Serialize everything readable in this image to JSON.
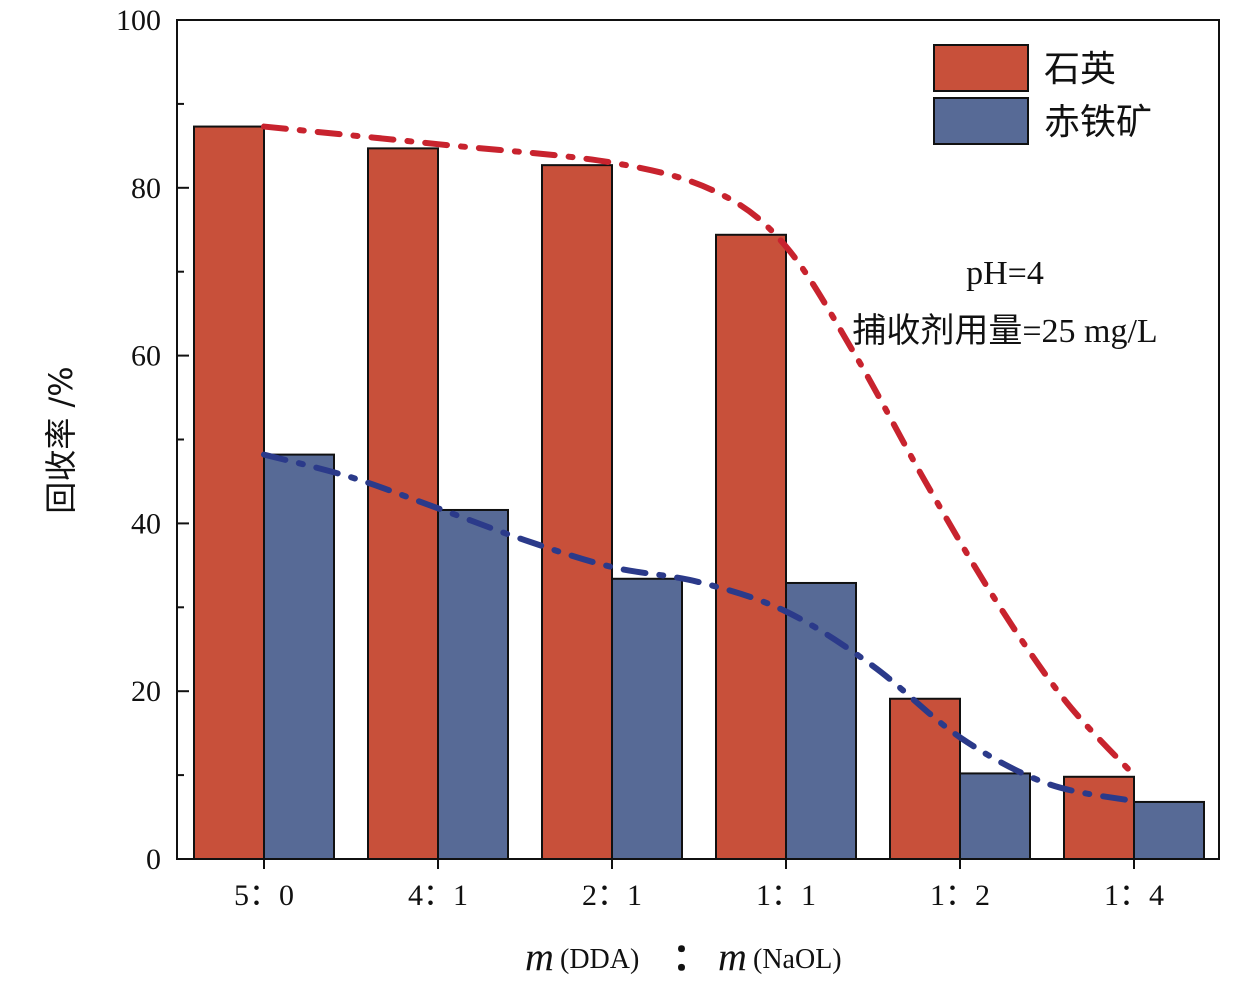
{
  "chart_data": {
    "type": "bar",
    "categories": [
      "5：0",
      "4：1",
      "2：1",
      "1：1",
      "1：2",
      "1：4"
    ],
    "series": [
      {
        "name": "石英",
        "color": "#c8503a",
        "values": [
          87.3,
          84.7,
          82.7,
          74.4,
          19.1,
          9.8
        ]
      },
      {
        "name": "赤铁矿",
        "color": "#576a96",
        "values": [
          48.2,
          41.6,
          33.4,
          32.9,
          10.2,
          6.8
        ]
      }
    ],
    "trend_lines": [
      {
        "series": "石英",
        "color": "#c8232e",
        "style": "dash-dot",
        "points": [
          [
            0,
            87.3
          ],
          [
            1,
            85.2
          ],
          [
            2,
            83.0
          ],
          [
            2.6,
            79.5
          ],
          [
            3.0,
            73.0
          ],
          [
            3.4,
            60.0
          ],
          [
            3.8,
            45.0
          ],
          [
            4.2,
            31.0
          ],
          [
            4.6,
            19.0
          ],
          [
            5.0,
            10.0
          ]
        ]
      },
      {
        "series": "赤铁矿",
        "color": "#2b3a8a",
        "style": "dash-dot",
        "points": [
          [
            0,
            48.2
          ],
          [
            0.5,
            45.5
          ],
          [
            1,
            41.8
          ],
          [
            1.5,
            38.0
          ],
          [
            2,
            34.8
          ],
          [
            2.5,
            33.0
          ],
          [
            3.0,
            29.5
          ],
          [
            3.5,
            23.0
          ],
          [
            4.0,
            14.5
          ],
          [
            4.5,
            9.0
          ],
          [
            5.0,
            6.9
          ]
        ]
      }
    ],
    "xlabel": {
      "m1": "m",
      "sub1": "(DDA)",
      "colon": "：",
      "m2": "m",
      "sub2": "(NaOL)"
    },
    "ylabel": "回收率 /%",
    "ylim": [
      0,
      100
    ],
    "yticks": [
      0,
      20,
      40,
      60,
      80,
      100
    ],
    "legend_position": "top-right",
    "annotations": [
      "pH=4",
      "捕收剂用量=25 mg/L"
    ],
    "grid": false
  }
}
